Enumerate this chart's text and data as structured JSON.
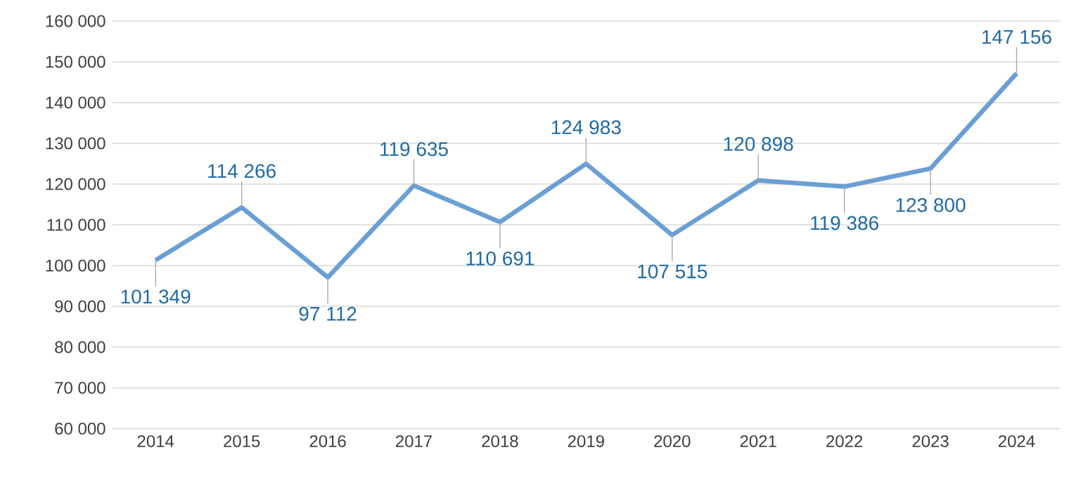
{
  "chart_data": {
    "type": "line",
    "categories": [
      "2014",
      "2015",
      "2016",
      "2017",
      "2018",
      "2019",
      "2020",
      "2021",
      "2022",
      "2023",
      "2024"
    ],
    "values": [
      101349,
      114266,
      97112,
      119635,
      110691,
      124983,
      107515,
      120898,
      119386,
      123800,
      147156
    ],
    "value_labels": [
      "101 349",
      "114 266",
      "97 112",
      "119 635",
      "110 691",
      "124 983",
      "107 515",
      "120 898",
      "119 386",
      "123 800",
      "147 156"
    ],
    "color": "#6a9fd4",
    "ylim": [
      60000,
      160000
    ],
    "yticks": [
      {
        "value": 60000,
        "label": "60 000"
      },
      {
        "value": 70000,
        "label": "70 000"
      },
      {
        "value": 80000,
        "label": "80 000"
      },
      {
        "value": 90000,
        "label": "90 000"
      },
      {
        "value": 100000,
        "label": "100 000"
      },
      {
        "value": 110000,
        "label": "110 000"
      },
      {
        "value": 120000,
        "label": "120 000"
      },
      {
        "value": 130000,
        "label": "130 000"
      },
      {
        "value": 140000,
        "label": "140 000"
      },
      {
        "value": 150000,
        "label": "150 000"
      },
      {
        "value": 160000,
        "label": "160 000"
      }
    ],
    "grid": "y",
    "marker": "none",
    "line_style": "solid"
  }
}
